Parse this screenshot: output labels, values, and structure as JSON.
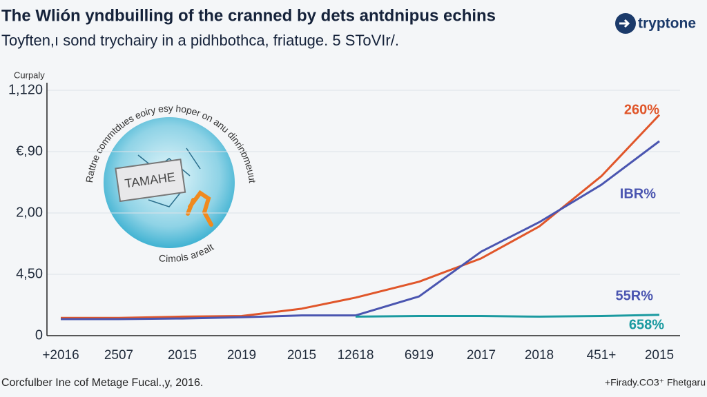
{
  "chart_data": {
    "type": "line",
    "title": "The Wlión yndbuilling of the cranned by dets antdnipus echins",
    "subtitle": "Toyften,ı sond trychairy in a pidhbothca, friatuge. 5 SToVIr/.",
    "y_label": "Curpaly",
    "logo": "tryptone",
    "source": "Corcfulber Ine cof Metage Fucal.,y, 2016.",
    "credit": "+Firady.CO3⁺ Fhetgaru",
    "illustration": {
      "card": "TAMAHE",
      "arc_top": "Rattne commtdues eoiry esy hoper on anu dinrinbmeuuts",
      "arc_bottom": "Cimols arealt"
    },
    "categories": [
      "+2016",
      "2507",
      "2015",
      "2019",
      "2015",
      "12618",
      "6919",
      "2017",
      "2018",
      "451+",
      "2015"
    ],
    "series": [
      {
        "color": "#e0562a",
        "values": [
          0.29,
          0.29,
          0.31,
          0.32,
          0.44,
          0.62,
          0.88,
          1.26,
          1.78,
          2.6,
          3.6
        ]
      },
      {
        "color": "#4a55b0",
        "values": [
          0.27,
          0.27,
          0.28,
          0.3,
          0.33,
          0.33,
          0.64,
          1.37,
          1.85,
          2.46,
          3.17
        ]
      },
      {
        "color": "#1a9aa0",
        "values": [
          null,
          null,
          null,
          null,
          null,
          0.31,
          0.32,
          0.32,
          0.31,
          0.32,
          0.34
        ]
      }
    ],
    "annotations": [
      {
        "text": "260%",
        "color": "#e0562a"
      },
      {
        "text": "IBR%",
        "color": "#4a55b0"
      },
      {
        "text": "55R%",
        "color": "#4a55b0"
      },
      {
        "text": "658%",
        "color": "#1a9aa0"
      }
    ],
    "ylim": [
      0,
      4
    ],
    "yticks": [
      0,
      {
        "value": 1,
        "label": "4,50"
      },
      {
        "value": 2,
        "label": "2,00"
      },
      {
        "value": 3,
        "label": "€,90"
      },
      {
        "value": 4,
        "label": "1,120"
      }
    ],
    "grid": true
  }
}
